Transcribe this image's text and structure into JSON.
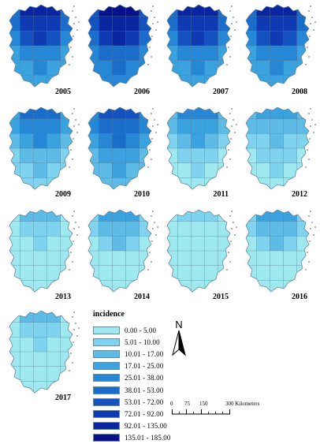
{
  "years": [
    "2005",
    "2006",
    "2007",
    "2008",
    "2009",
    "2010",
    "2011",
    "2012",
    "2013",
    "2014",
    "2015",
    "2016",
    "2017"
  ],
  "legend": {
    "title": "incidence",
    "classes": [
      {
        "label": "0.00 - 5.00",
        "color": "#9ee9ef"
      },
      {
        "label": "5.01 - 10.00",
        "color": "#7fd3ee"
      },
      {
        "label": "10.01 - 17.00",
        "color": "#5dbbe6"
      },
      {
        "label": "17.01 - 25.00",
        "color": "#3aa2df"
      },
      {
        "label": "25.01 - 38.00",
        "color": "#2687d6"
      },
      {
        "label": "38.01 - 53.00",
        "color": "#1a6dcb"
      },
      {
        "label": "53.01 - 72.00",
        "color": "#1452bf"
      },
      {
        "label": "72.01 - 92.00",
        "color": "#0e3ab3"
      },
      {
        "label": "92.01 - 135.00",
        "color": "#0a25a0"
      },
      {
        "label": "135.01 - 185.00",
        "color": "#06118a"
      }
    ]
  },
  "north_arrow": {
    "label": "N"
  },
  "scale_bar": {
    "ticks": [
      "0",
      "75",
      "150",
      "300 Kilometers"
    ]
  },
  "colors": {
    "boundary": "#5b7c93",
    "islands": "#6a7f92"
  }
}
